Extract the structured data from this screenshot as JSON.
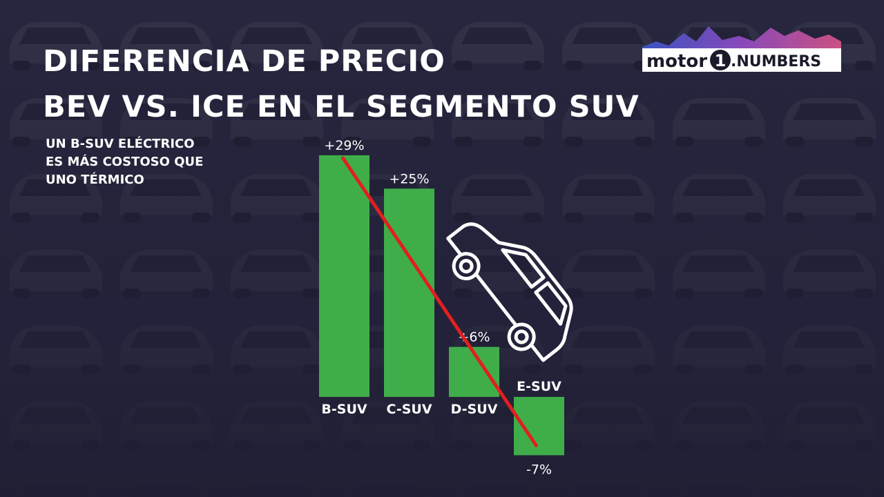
{
  "header": {
    "title_line1": "DIFERENCIA DE PRECIO",
    "title_line2": "BEV VS. ICE EN EL SEGMENTO SUV"
  },
  "annotation": {
    "line1": "UN B-SUV ELÉCTRICO",
    "line2": "ES MÁS COSTOSO QUE",
    "line3": "UNO TÉRMICO"
  },
  "logo": {
    "word_motor": "motor",
    "word_one": "1",
    "word_numbers": ".NUMBERS"
  },
  "colors": {
    "bar": "#3fae4a",
    "trend_line": "#e02020",
    "background": "#23223a",
    "text": "#ffffff"
  },
  "icons": {
    "car": "car-outline-icon"
  },
  "chart_data": {
    "type": "bar",
    "categories": [
      "B-SUV",
      "C-SUV",
      "D-SUV",
      "E-SUV"
    ],
    "values": [
      29,
      25,
      6,
      -7
    ],
    "value_labels": [
      "+29%",
      "+25%",
      "+6%",
      "-7%"
    ],
    "unit": "%",
    "trend_line": true,
    "grid": false,
    "legend": "none"
  }
}
